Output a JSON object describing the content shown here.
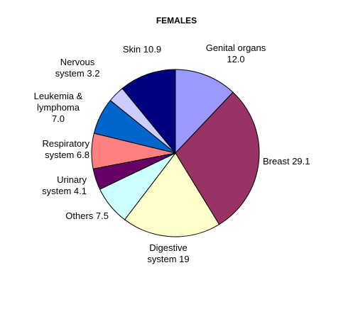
{
  "chart_data": {
    "type": "pie",
    "title": "FEMALES",
    "categories": [
      "Genital organs",
      "Breast",
      "Digestive system",
      "Others",
      "Urinary system",
      "Respiratory system",
      "Leukemia & lymphoma",
      "Nervous system",
      "Skin"
    ],
    "values": [
      12.0,
      29.1,
      19,
      7.5,
      4.1,
      6.8,
      7.0,
      3.2,
      10.9
    ],
    "value_labels": [
      "12.0",
      "29.1",
      "19",
      "7.5",
      "4.1",
      "6.8",
      "7.0",
      "3.2",
      "10.9"
    ],
    "colors": [
      "#9999ff",
      "#993366",
      "#ffffcc",
      "#ccffff",
      "#660066",
      "#ff8080",
      "#0066cc",
      "#ccccff",
      "#000080"
    ]
  }
}
